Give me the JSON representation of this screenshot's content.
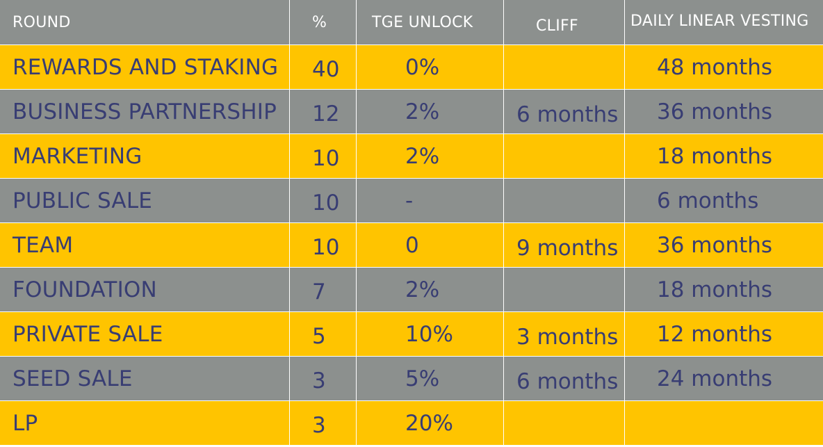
{
  "columns": {
    "round": "ROUND",
    "percent": "%",
    "tge_unlock": "TGE UNLOCK",
    "cliff": "CLIFF",
    "vesting": "DAILY LINEAR VESTING"
  },
  "rows": [
    {
      "round": "REWARDS AND STAKING",
      "percent": "40",
      "tge_unlock": "0%",
      "cliff": "",
      "vesting": "48 months"
    },
    {
      "round": "BUSINESS PARTNERSHIP",
      "percent": "12",
      "tge_unlock": "2%",
      "cliff": "6 months",
      "vesting": "36 months"
    },
    {
      "round": "MARKETING",
      "percent": "10",
      "tge_unlock": "2%",
      "cliff": "",
      "vesting": "18 months"
    },
    {
      "round": "PUBLIC SALE",
      "percent": "10",
      "tge_unlock": "-",
      "cliff": "",
      "vesting": "6 months"
    },
    {
      "round": "TEAM",
      "percent": "10",
      "tge_unlock": "0",
      "cliff": "9 months",
      "vesting": "36 months"
    },
    {
      "round": "FOUNDATION",
      "percent": "7",
      "tge_unlock": "2%",
      "cliff": "",
      "vesting": "18 months"
    },
    {
      "round": "PRIVATE SALE",
      "percent": "5",
      "tge_unlock": "10%",
      "cliff": "3 months",
      "vesting": "12 months"
    },
    {
      "round": "SEED SALE",
      "percent": "3",
      "tge_unlock": "5%",
      "cliff": "6 months",
      "vesting": "24 months"
    },
    {
      "round": "LP",
      "percent": "3",
      "tge_unlock": "20%",
      "cliff": "",
      "vesting": ""
    }
  ],
  "colors": {
    "yellow_row": "#ffc400",
    "gray_row": "#8c908e",
    "text": "#383d73",
    "header_text": "#ffffff"
  }
}
